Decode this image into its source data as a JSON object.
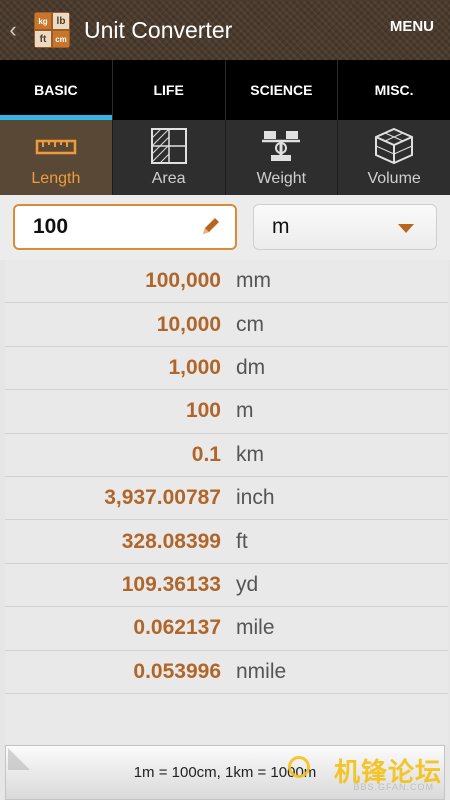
{
  "header": {
    "title": "Unit Converter",
    "menu_label": "MENU",
    "app_icon_labels": [
      "kg",
      "lb",
      "ft",
      "cm"
    ]
  },
  "tabs": [
    {
      "label": "BASIC",
      "active": true
    },
    {
      "label": "LIFE",
      "active": false
    },
    {
      "label": "SCIENCE",
      "active": false
    },
    {
      "label": "MISC.",
      "active": false
    }
  ],
  "categories": [
    {
      "label": "Length",
      "icon": "ruler-icon",
      "active": true
    },
    {
      "label": "Area",
      "icon": "area-grid-icon",
      "active": false
    },
    {
      "label": "Weight",
      "icon": "scale-icon",
      "active": false
    },
    {
      "label": "Volume",
      "icon": "cube-icon",
      "active": false
    }
  ],
  "input": {
    "value": "100",
    "unit": "m"
  },
  "results": [
    {
      "value": "100,000",
      "unit": "mm"
    },
    {
      "value": "10,000",
      "unit": "cm"
    },
    {
      "value": "1,000",
      "unit": "dm"
    },
    {
      "value": "100",
      "unit": "m"
    },
    {
      "value": "0.1",
      "unit": "km"
    },
    {
      "value": "3,937.00787",
      "unit": "inch"
    },
    {
      "value": "328.08399",
      "unit": "ft"
    },
    {
      "value": "109.36133",
      "unit": "yd"
    },
    {
      "value": "0.062137",
      "unit": "mile"
    },
    {
      "value": "0.053996",
      "unit": "nmile"
    }
  ],
  "footer": {
    "note": "1m = 100cm, 1km = 1000m"
  },
  "watermark": {
    "text": "机锋论坛",
    "url": "BBS.GFAN.COM"
  },
  "colors": {
    "accent": "#33b5e5",
    "value_text": "#b0662a",
    "active_category_text": "#f09a3a",
    "input_border": "#d88c3a"
  }
}
